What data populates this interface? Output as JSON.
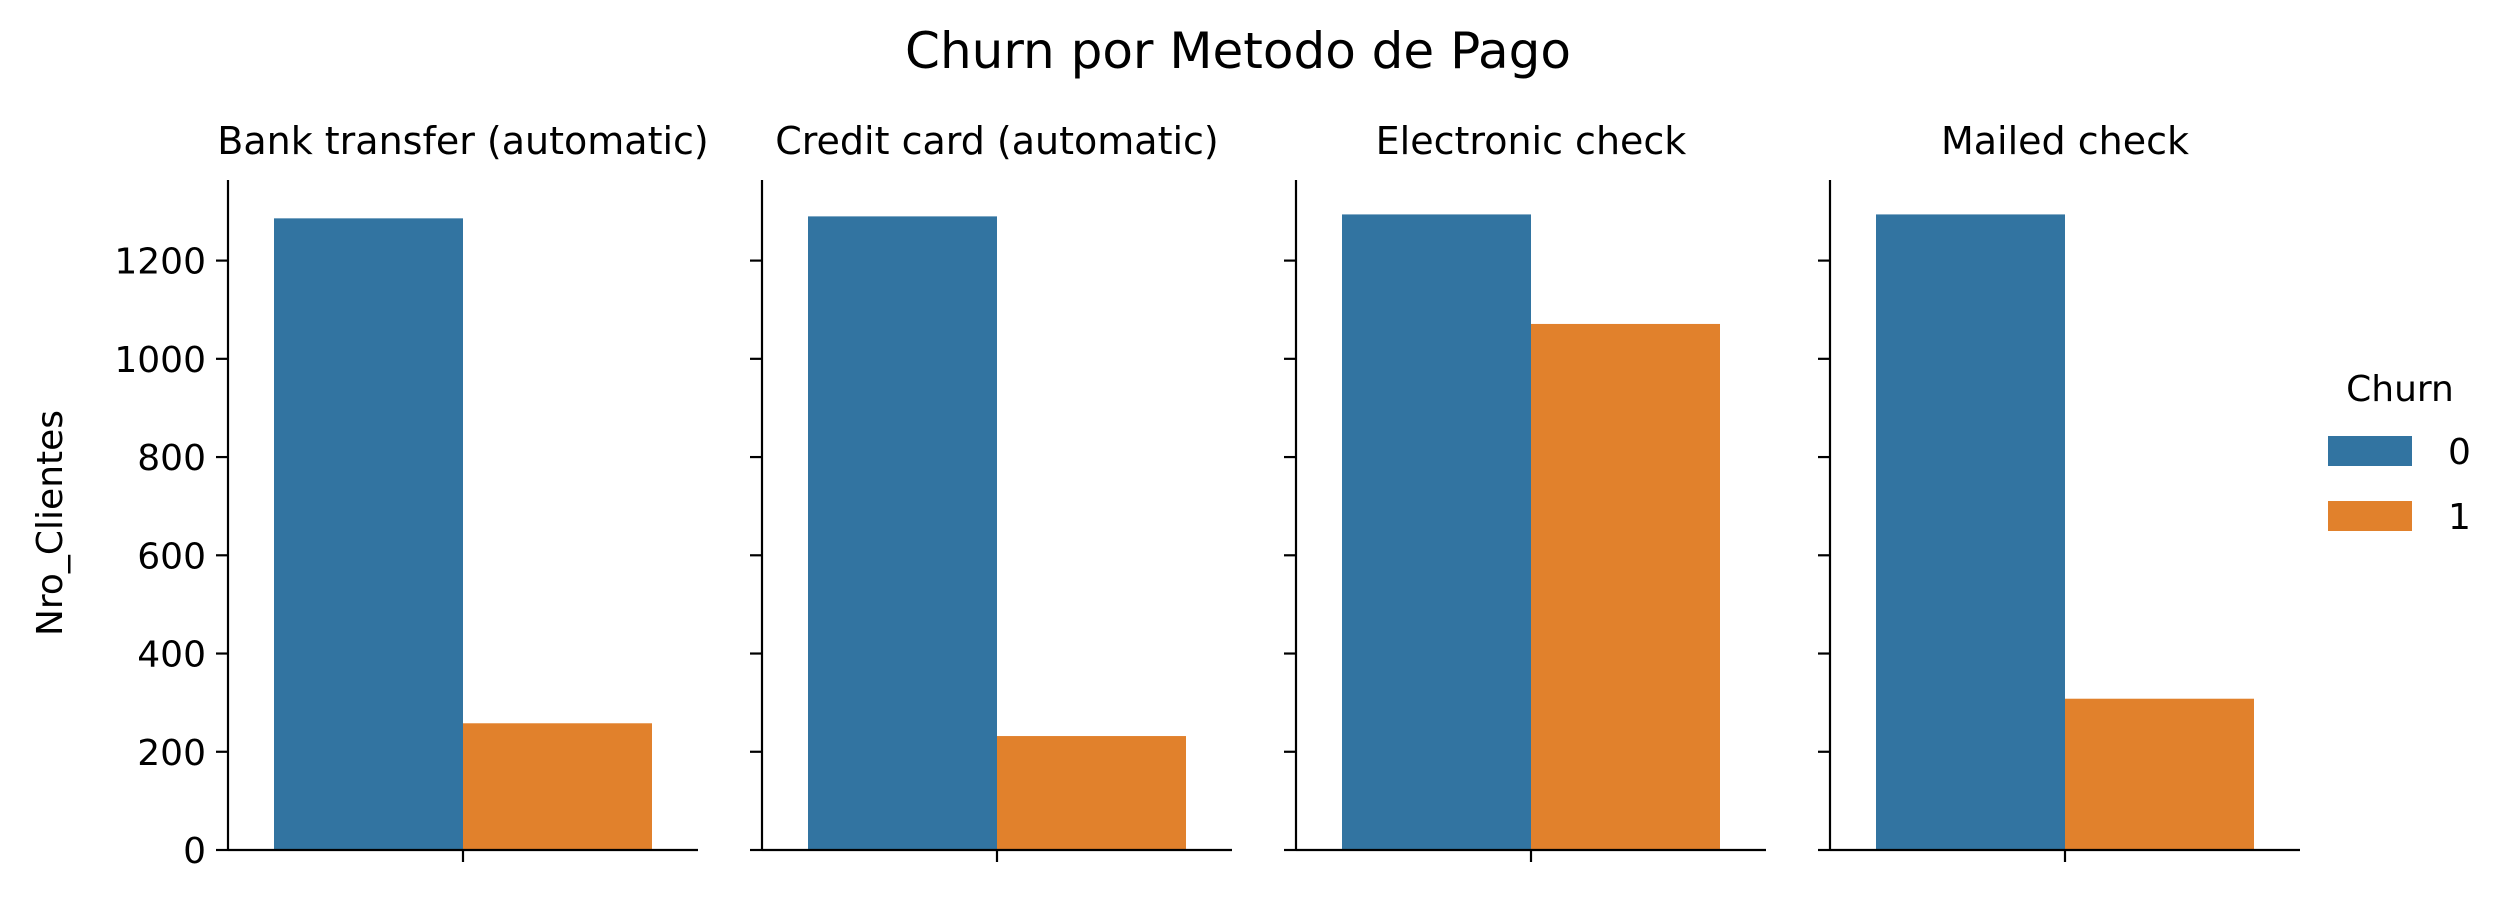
{
  "chart_data": {
    "type": "bar",
    "title": "Churn por Metodo de Pago",
    "ylabel": "Nro_Clientes",
    "xlabel": "",
    "ylim": [
      0,
      1360
    ],
    "yticks": [
      0,
      200,
      400,
      600,
      800,
      1000,
      1200
    ],
    "grid": false,
    "legend_placement": "right",
    "legend": {
      "title": "Churn",
      "entries": [
        {
          "label": "0",
          "color": "#3274a1"
        },
        {
          "label": "1",
          "color": "#e1812c"
        }
      ]
    },
    "panels": [
      {
        "title": "Bank transfer (automatic)",
        "values": [
          1286,
          258
        ]
      },
      {
        "title": "Credit card (automatic)",
        "values": [
          1290,
          232
        ]
      },
      {
        "title": "Electronic check",
        "values": [
          1294,
          1071
        ]
      },
      {
        "title": "Mailed check",
        "values": [
          1294,
          308
        ]
      }
    ],
    "series": [
      {
        "name": "0",
        "color": "#3274a1"
      },
      {
        "name": "1",
        "color": "#e1812c"
      }
    ]
  }
}
